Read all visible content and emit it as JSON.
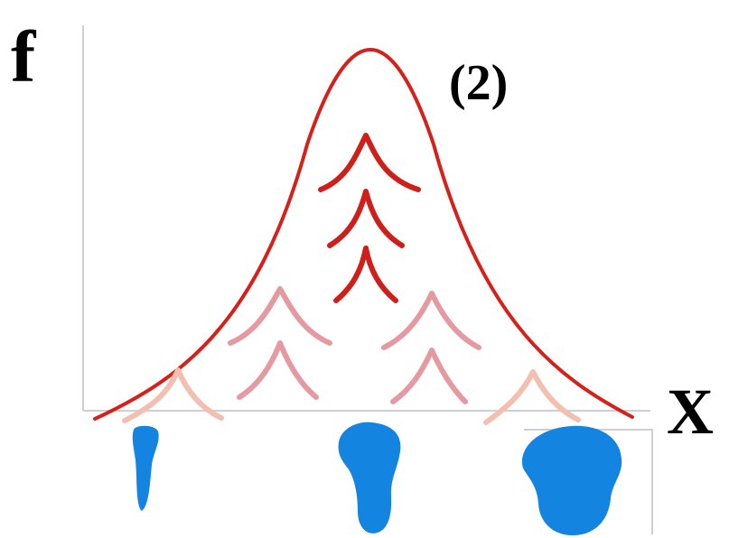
{
  "labels": {
    "y_axis": "f",
    "x_axis": "X",
    "curve_label": "(2)"
  },
  "colors": {
    "main_curve": "#d6211b",
    "dark_peak": "#cf1f1a",
    "mid_peak": "#e49aa0",
    "light_peak": "#f2bfb0",
    "blob": "#1384df",
    "axis": "#cfcfcf"
  },
  "peaks": {
    "dark_count": 3,
    "mid_count": 4,
    "light_count": 2
  },
  "droplets": [
    "small-droplet-icon",
    "medium-droplet-icon",
    "large-droplet-icon"
  ]
}
